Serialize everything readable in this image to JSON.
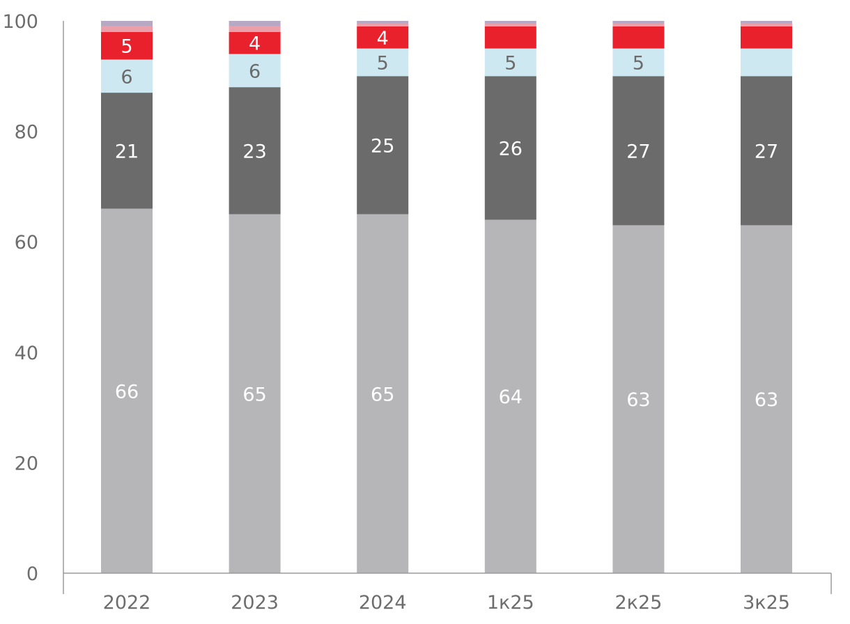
{
  "chart_data": {
    "type": "bar",
    "stacked": true,
    "categories": [
      "2022",
      "2023",
      "2024",
      "1к25",
      "2к25",
      "3к25"
    ],
    "ylim": [
      0,
      100
    ],
    "yticks": [
      0,
      20,
      40,
      60,
      80,
      100
    ],
    "grid": false,
    "legend": "none",
    "series": [
      {
        "values": [
          66,
          65,
          65,
          64,
          63,
          63
        ],
        "color": "#b6b6b8",
        "labels": [
          "66",
          "65",
          "65",
          "64",
          "63",
          "63"
        ],
        "label_color": "#ffffff"
      },
      {
        "values": [
          21,
          23,
          25,
          26,
          27,
          27
        ],
        "color": "#6b6b6b",
        "labels": [
          "21",
          "23",
          "25",
          "26",
          "27",
          "27"
        ],
        "label_color": "#ffffff"
      },
      {
        "values": [
          6,
          6,
          5,
          5,
          5,
          5
        ],
        "color": "#cde8f0",
        "labels": [
          "6",
          "6",
          "5",
          "5",
          "5",
          ""
        ],
        "label_color": "#6b6b6b"
      },
      {
        "values": [
          5,
          4,
          4,
          4,
          4,
          4
        ],
        "color": "#e8212d",
        "labels": [
          "5",
          "4",
          "4",
          "",
          "",
          ""
        ],
        "label_color": "#ffffff"
      },
      {
        "values": [
          1,
          1,
          0.5,
          0.5,
          0.5,
          0.5
        ],
        "color": "#e9a0ab",
        "labels": [
          "",
          "",
          "",
          "",
          "",
          ""
        ],
        "label_color": "#ffffff"
      },
      {
        "values": [
          1,
          1,
          0.5,
          0.5,
          0.5,
          0.5
        ],
        "color": "#b7a8c4",
        "labels": [
          "",
          "",
          "",
          "",
          "",
          ""
        ],
        "label_color": "#ffffff"
      }
    ]
  }
}
